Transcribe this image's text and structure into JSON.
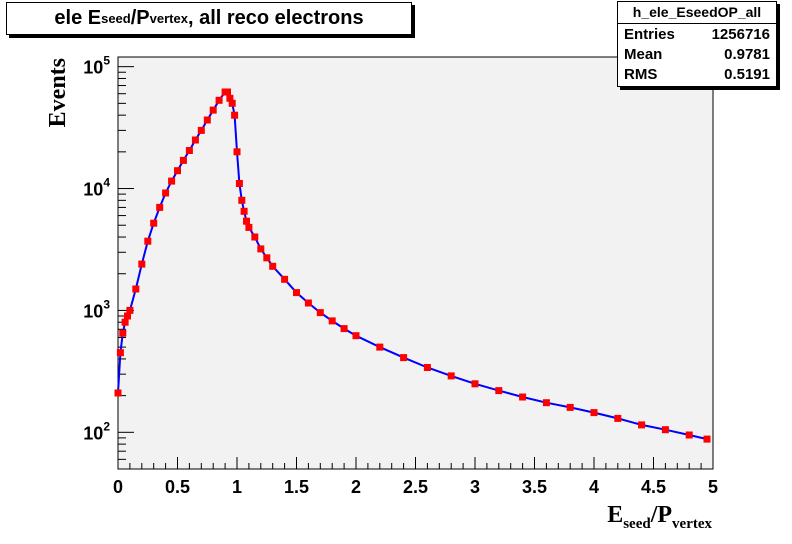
{
  "title": {
    "prefix": "ele E",
    "sub1": "seed",
    "mid": "/P",
    "sub2": "vertex",
    "suffix": ", all reco electrons"
  },
  "stats": {
    "name": "h_ele_EseedOP_all",
    "rows": [
      {
        "label": "Entries",
        "value": "1256716"
      },
      {
        "label": "Mean",
        "value": "0.9781"
      },
      {
        "label": "RMS",
        "value": "0.5191"
      }
    ]
  },
  "colors": {
    "frame_fill": "#f2f2f2",
    "line": "#0000ff",
    "marker": "#ff0000"
  },
  "chart_data": {
    "type": "line",
    "xlabel": {
      "main": "E",
      "sub1": "seed",
      "mid": "/P",
      "sub2": "vertex"
    },
    "ylabel": "Events",
    "xlim": [
      0,
      5
    ],
    "ylim": [
      50,
      120000
    ],
    "yscale": "log",
    "grid": false,
    "x_ticks": [
      "0",
      "0.5",
      "1",
      "1.5",
      "2",
      "2.5",
      "3",
      "3.5",
      "4",
      "4.5",
      "5"
    ],
    "y_ticks": [
      {
        "value": 100,
        "base": "10",
        "exp": "2"
      },
      {
        "value": 1000,
        "base": "10",
        "exp": "3"
      },
      {
        "value": 10000,
        "base": "10",
        "exp": "4"
      },
      {
        "value": 100000,
        "base": "10",
        "exp": "5"
      }
    ],
    "x": [
      0.0,
      0.02,
      0.04,
      0.06,
      0.08,
      0.1,
      0.15,
      0.2,
      0.25,
      0.3,
      0.35,
      0.4,
      0.45,
      0.5,
      0.55,
      0.6,
      0.65,
      0.7,
      0.75,
      0.8,
      0.85,
      0.9,
      0.92,
      0.94,
      0.96,
      0.98,
      1.0,
      1.02,
      1.04,
      1.06,
      1.08,
      1.1,
      1.15,
      1.2,
      1.25,
      1.3,
      1.4,
      1.5,
      1.6,
      1.7,
      1.8,
      1.9,
      2.0,
      2.2,
      2.4,
      2.6,
      2.8,
      3.0,
      3.2,
      3.4,
      3.6,
      3.8,
      4.0,
      4.2,
      4.4,
      4.6,
      4.8,
      4.95
    ],
    "y": [
      210,
      450,
      650,
      800,
      900,
      1000,
      1500,
      2400,
      3700,
      5200,
      7000,
      9200,
      11500,
      14000,
      17000,
      20500,
      25000,
      30000,
      36500,
      44000,
      53000,
      62000,
      62000,
      55000,
      50000,
      40000,
      20000,
      11000,
      8000,
      6500,
      5400,
      4800,
      4000,
      3200,
      2700,
      2300,
      1800,
      1400,
      1150,
      960,
      820,
      710,
      620,
      500,
      410,
      340,
      290,
      250,
      220,
      195,
      175,
      160,
      145,
      130,
      115,
      105,
      95,
      88
    ]
  }
}
